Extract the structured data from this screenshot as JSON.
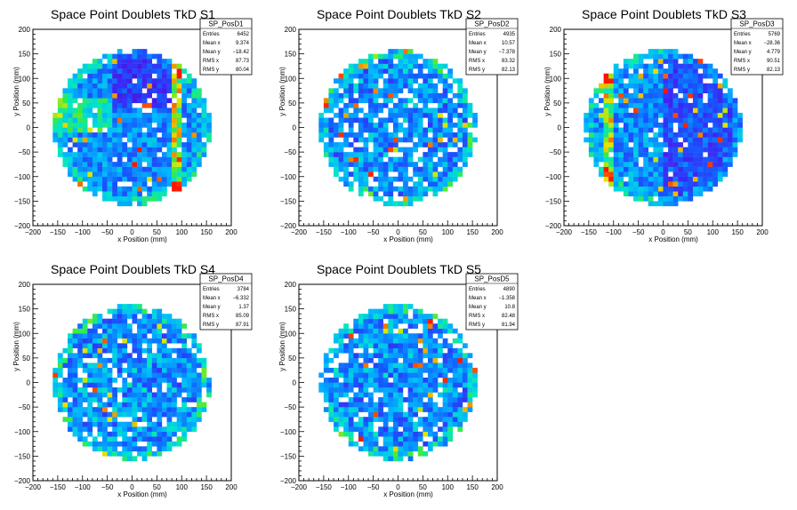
{
  "chart_data": [
    {
      "type": "heatmap",
      "title": "Space Point Doublets TkD S1",
      "xlabel": "x Position (mm)",
      "ylabel": "y Position (mm)",
      "xlim": [
        -200,
        200
      ],
      "ylim": [
        -200,
        200
      ],
      "xticks": [
        -200,
        -150,
        -100,
        -50,
        0,
        50,
        100,
        150,
        200
      ],
      "yticks": [
        -200,
        -150,
        -100,
        -50,
        0,
        50,
        100,
        150,
        200
      ],
      "stats": {
        "name": "SP_PosD1",
        "rows": [
          {
            "label": "Entries",
            "value": "6452"
          },
          {
            "label": "Mean x",
            "value": "9.374"
          },
          {
            "label": "Mean y",
            "value": "−18.42"
          },
          {
            "label": "RMS x",
            "value": "87.73"
          },
          {
            "label": "RMS y",
            "value": "80.04"
          }
        ]
      },
      "pattern": "band",
      "seed": 11
    },
    {
      "type": "heatmap",
      "title": "Space Point Doublets TkD S2",
      "xlabel": "x Position (mm)",
      "ylabel": "y Position (mm)",
      "xlim": [
        -200,
        200
      ],
      "ylim": [
        -200,
        200
      ],
      "xticks": [
        -200,
        -150,
        -100,
        -50,
        0,
        50,
        100,
        150,
        200
      ],
      "yticks": [
        -200,
        -150,
        -100,
        -50,
        0,
        50,
        100,
        150,
        200
      ],
      "stats": {
        "name": "SP_PosD2",
        "rows": [
          {
            "label": "Entries",
            "value": "4935"
          },
          {
            "label": "Mean x",
            "value": "10.57"
          },
          {
            "label": "Mean y",
            "value": "−7.378"
          },
          {
            "label": "RMS x",
            "value": "83.32"
          },
          {
            "label": "RMS y",
            "value": "82.13"
          }
        ]
      },
      "pattern": "sparse",
      "seed": 23
    },
    {
      "type": "heatmap",
      "title": "Space Point Doublets TkD S3",
      "xlabel": "x Position (mm)",
      "ylabel": "y Position (mm)",
      "xlim": [
        -200,
        200
      ],
      "ylim": [
        -200,
        200
      ],
      "xticks": [
        -200,
        -150,
        -100,
        -50,
        0,
        50,
        100,
        150,
        200
      ],
      "yticks": [
        -200,
        -150,
        -100,
        -50,
        0,
        50,
        100,
        150,
        200
      ],
      "stats": {
        "name": "SP_PosD3",
        "rows": [
          {
            "label": "Entries",
            "value": "5769"
          },
          {
            "label": "Mean x",
            "value": "−28.36"
          },
          {
            "label": "Mean y",
            "value": "4.779"
          },
          {
            "label": "RMS x",
            "value": "90.51"
          },
          {
            "label": "RMS y",
            "value": "82.13"
          }
        ]
      },
      "pattern": "leftband",
      "seed": 37
    },
    {
      "type": "heatmap",
      "title": "Space Point Doublets TkD S4",
      "xlabel": "x Position (mm)",
      "ylabel": "y Position (mm)",
      "xlim": [
        -200,
        200
      ],
      "ylim": [
        -200,
        200
      ],
      "xticks": [
        -200,
        -150,
        -100,
        -50,
        0,
        50,
        100,
        150,
        200
      ],
      "yticks": [
        -200,
        -150,
        -100,
        -50,
        0,
        50,
        100,
        150,
        200
      ],
      "stats": {
        "name": "SP_PosD4",
        "rows": [
          {
            "label": "Entries",
            "value": "3784"
          },
          {
            "label": "Mean x",
            "value": "−6.332"
          },
          {
            "label": "Mean y",
            "value": "1.37"
          },
          {
            "label": "RMS x",
            "value": "85.09"
          },
          {
            "label": "RMS y",
            "value": "87.91"
          }
        ]
      },
      "pattern": "sparse",
      "seed": 41
    },
    {
      "type": "heatmap",
      "title": "Space Point Doublets TkD S5",
      "xlabel": "x Position (mm)",
      "ylabel": "y Position (mm)",
      "xlim": [
        -200,
        200
      ],
      "ylim": [
        -200,
        200
      ],
      "xticks": [
        -200,
        -150,
        -100,
        -50,
        0,
        50,
        100,
        150,
        200
      ],
      "yticks": [
        -200,
        -150,
        -100,
        -50,
        0,
        50,
        100,
        150,
        200
      ],
      "stats": {
        "name": "SP_PosD5",
        "rows": [
          {
            "label": "Entries",
            "value": "4890"
          },
          {
            "label": "Mean x",
            "value": "−1.358"
          },
          {
            "label": "Mean y",
            "value": "10.8"
          },
          {
            "label": "RMS x",
            "value": "82.48"
          },
          {
            "label": "RMS y",
            "value": "81.94"
          }
        ]
      },
      "pattern": "sparse",
      "seed": 53
    }
  ],
  "colors": {
    "axis": "#000000",
    "stats_border": "#000000",
    "low": "#1a1aff",
    "mid": "#00c8ff",
    "high": "#ff2000"
  }
}
